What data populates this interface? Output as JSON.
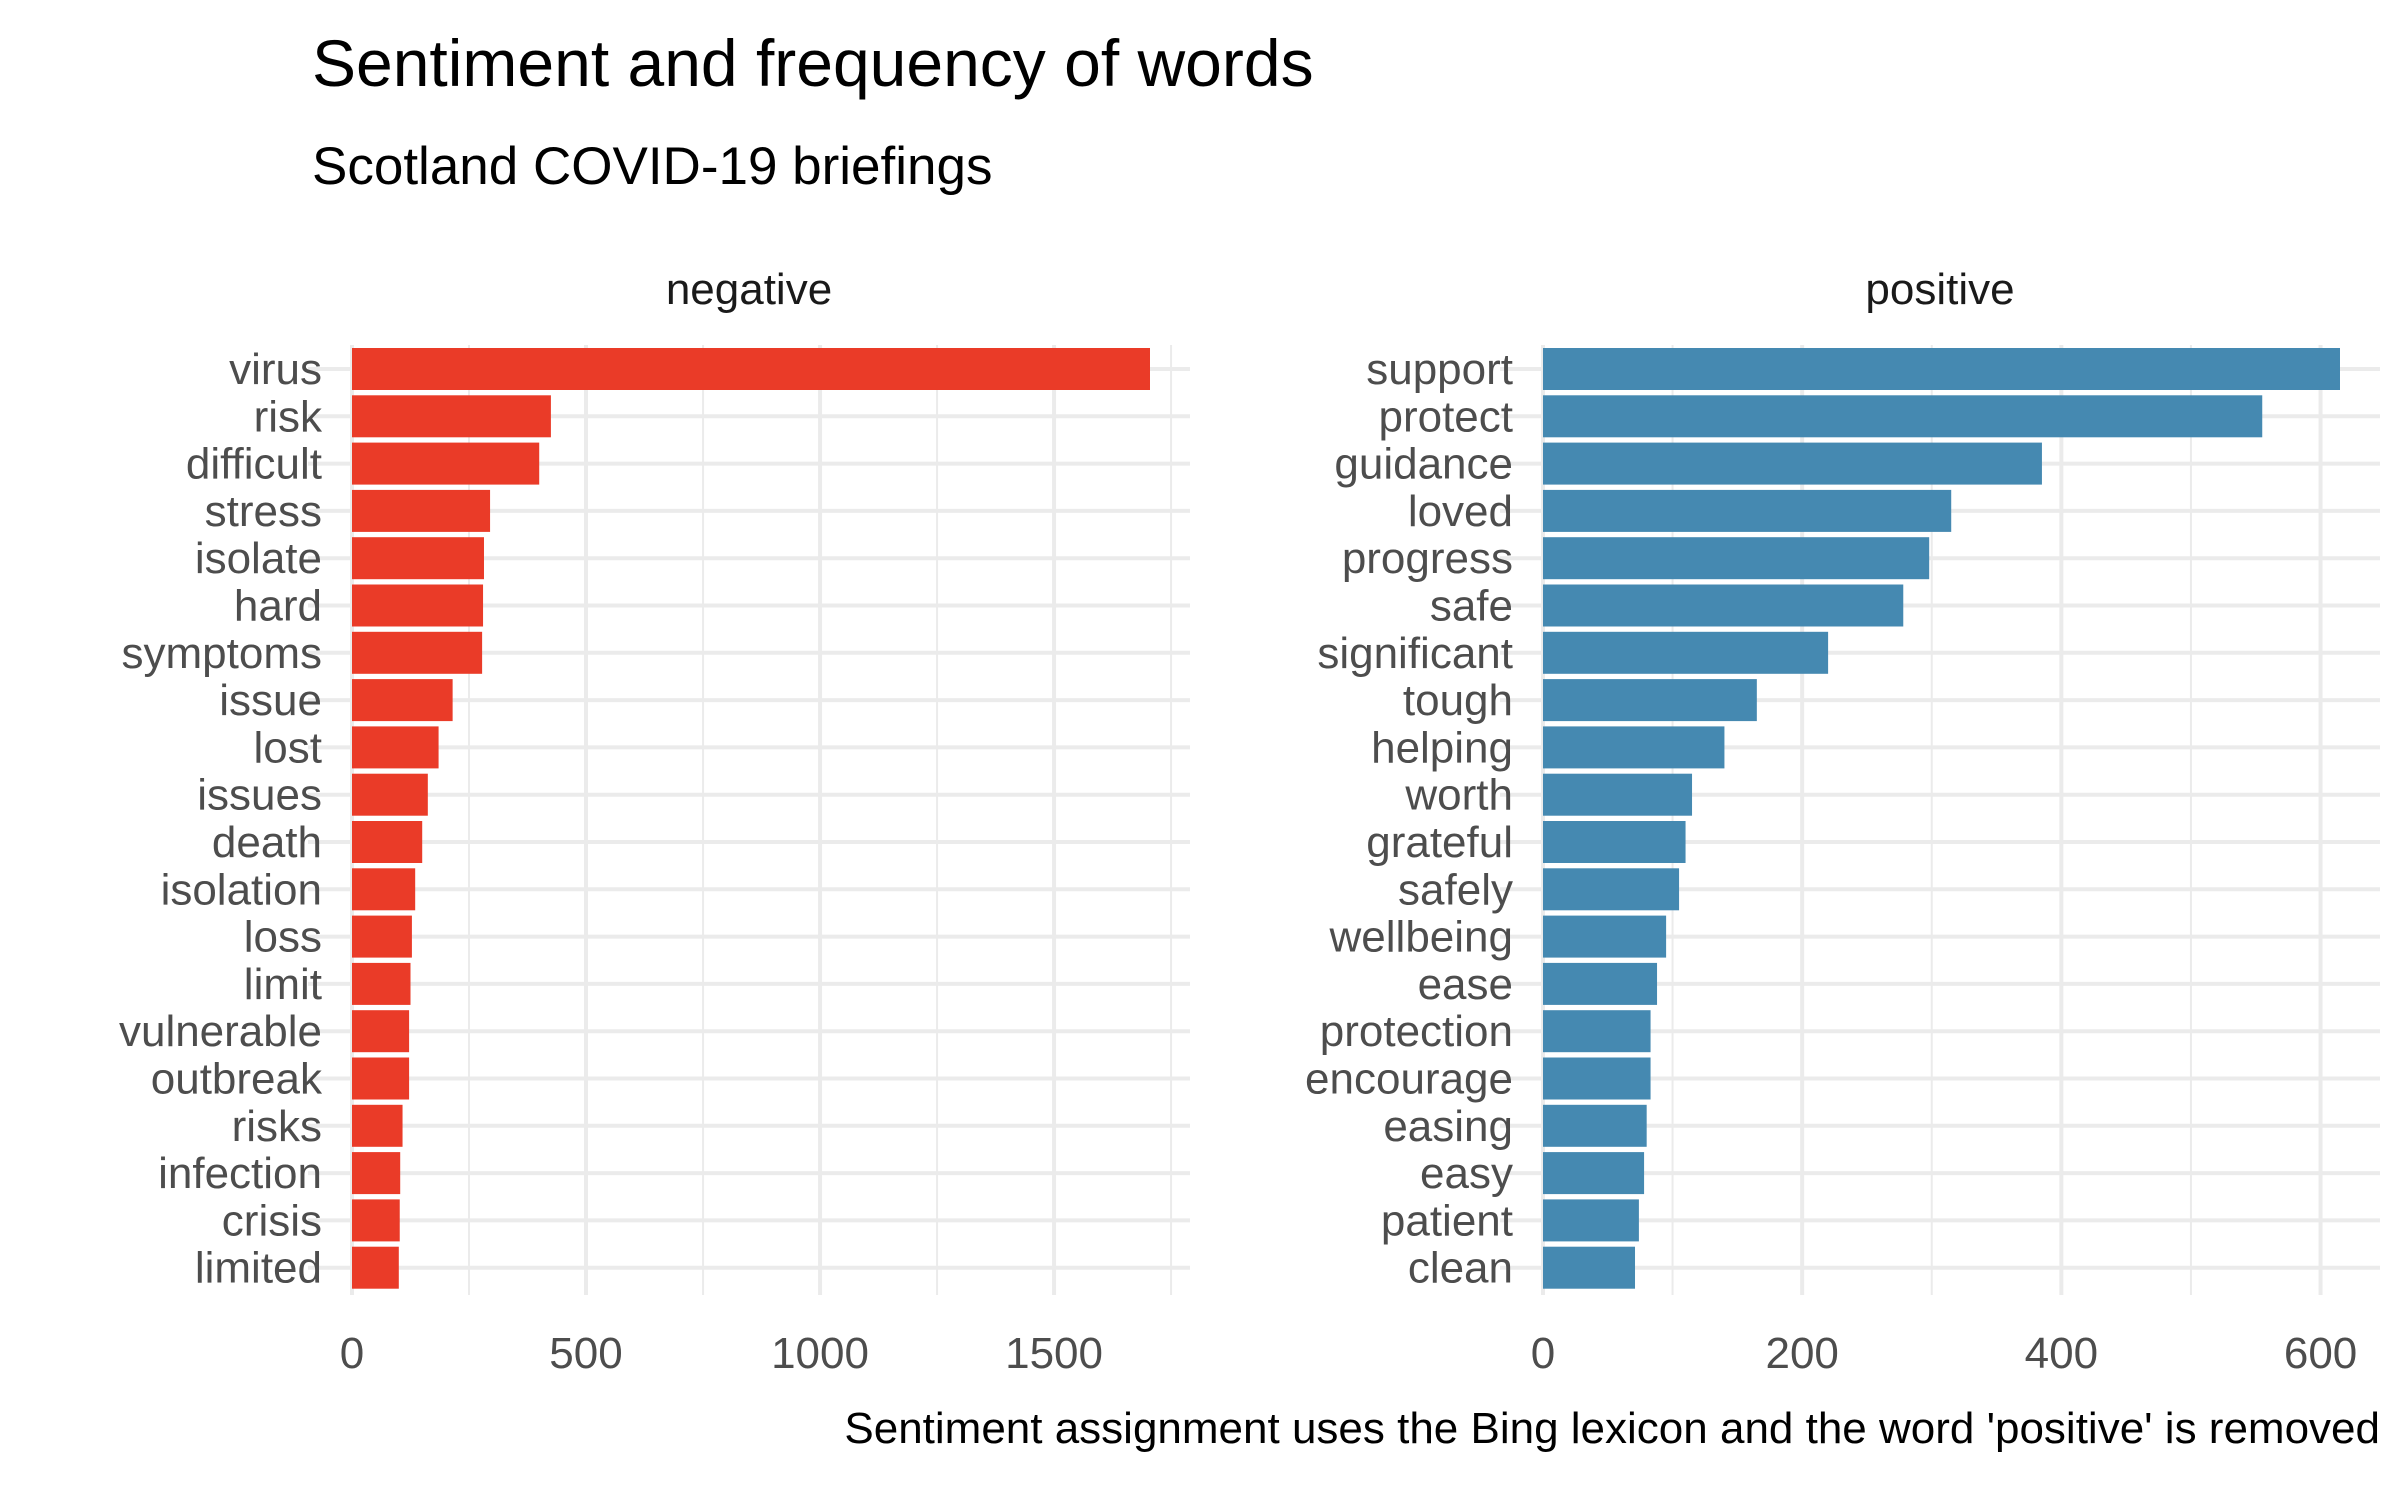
{
  "chart_data": {
    "type": "bar",
    "title": "Sentiment and frequency of words",
    "subtitle": "Scotland COVID-19 briefings",
    "caption": "Sentiment assignment uses the Bing lexicon and the word 'positive' is removed",
    "orientation": "horizontal",
    "grid": true,
    "legend": "none",
    "panels": [
      {
        "name": "negative",
        "color": "#EA3B28",
        "xlim": [
          0,
          1750
        ],
        "ticks": [
          0,
          500,
          1000,
          1500
        ],
        "categories": [
          "virus",
          "risk",
          "difficult",
          "stress",
          "isolate",
          "hard",
          "symptoms",
          "issue",
          "lost",
          "issues",
          "death",
          "isolation",
          "loss",
          "limit",
          "vulnerable",
          "outbreak",
          "risks",
          "infection",
          "crisis",
          "limited"
        ],
        "values": [
          1705,
          425,
          400,
          295,
          282,
          280,
          278,
          215,
          185,
          162,
          150,
          135,
          128,
          125,
          122,
          122,
          108,
          103,
          102,
          100
        ]
      },
      {
        "name": "positive",
        "color": "#4589B1",
        "xlim": [
          0,
          640
        ],
        "ticks": [
          0,
          200,
          400,
          600
        ],
        "categories": [
          "support",
          "protect",
          "guidance",
          "loved",
          "progress",
          "safe",
          "significant",
          "tough",
          "helping",
          "worth",
          "grateful",
          "safely",
          "wellbeing",
          "ease",
          "protection",
          "encourage",
          "easing",
          "easy",
          "patient",
          "clean"
        ],
        "values": [
          615,
          555,
          385,
          315,
          298,
          278,
          220,
          165,
          140,
          115,
          110,
          105,
          95,
          88,
          83,
          83,
          80,
          78,
          74,
          71
        ]
      }
    ]
  }
}
